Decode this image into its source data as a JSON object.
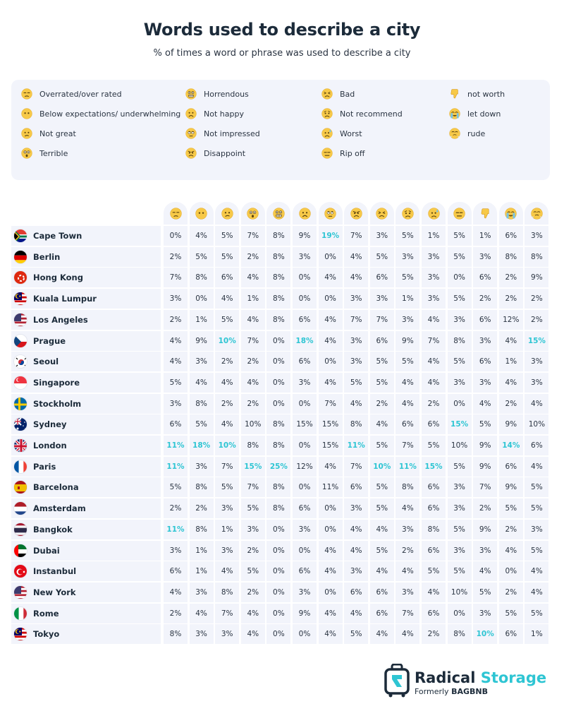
{
  "header": {
    "title": "Words used to describe a city",
    "subtitle": "% of times a word or phrase was used to describe a city"
  },
  "colors": {
    "highlight": "#2ec5d3",
    "panel": "#f2f4fb",
    "text": "#1c2b3a",
    "emoji": "#f7c948"
  },
  "legend": [
    {
      "label": "Overrated/over rated",
      "icon": "unamused-face-icon"
    },
    {
      "label": "Below expectations/ underwhelming",
      "icon": "no-mouth-face-icon"
    },
    {
      "label": "Not great",
      "icon": "confused-face-icon"
    },
    {
      "label": "Terrible",
      "icon": "astonished-face-icon"
    },
    {
      "label": "Horrendous",
      "icon": "grimacing-face-icon"
    },
    {
      "label": "Not happy",
      "icon": "frowning-face-icon"
    },
    {
      "label": "Not impressed",
      "icon": "eye-roll-face-icon"
    },
    {
      "label": "Disappoint",
      "icon": "angry-face-icon"
    },
    {
      "label": "Bad",
      "icon": "persevering-face-icon"
    },
    {
      "label": "Not recommend",
      "icon": "worried-face-icon"
    },
    {
      "label": "Worst",
      "icon": "anxious-sweat-face-icon"
    },
    {
      "label": "Rip off",
      "icon": "expressionless-face-icon"
    },
    {
      "label": "not worth",
      "icon": "thumbs-down-icon"
    },
    {
      "label": "let down",
      "icon": "crying-face-icon"
    },
    {
      "label": "rude",
      "icon": "steam-nose-face-icon"
    }
  ],
  "chart_data": {
    "type": "table",
    "title": "Words used to describe a city",
    "subtitle": "% of times a word or phrase was used to describe a city",
    "unit": "%",
    "columns": [
      "Overrated/over rated",
      "Below expectations/ underwhelming",
      "Not great",
      "Terrible",
      "Horrendous",
      "Not happy",
      "Not impressed",
      "Disappoint",
      "Bad",
      "Not recommend",
      "Worst",
      "Rip off",
      "not worth",
      "let down",
      "rude"
    ],
    "rows": [
      {
        "city": "Cape Town",
        "flag": "south-africa",
        "values": [
          "0%",
          "4%",
          "5%",
          "7%",
          "8%",
          "9%",
          "19%",
          "7%",
          "3%",
          "5%",
          "1%",
          "5%",
          "1%",
          "6%",
          "3%"
        ],
        "highlight": [
          6
        ]
      },
      {
        "city": "Berlin",
        "flag": "germany",
        "values": [
          "2%",
          "5%",
          "5%",
          "2%",
          "8%",
          "3%",
          "0%",
          "4%",
          "5%",
          "3%",
          "3%",
          "5%",
          "3%",
          "8%",
          "8%"
        ],
        "highlight": []
      },
      {
        "city": "Hong Kong",
        "flag": "hong-kong",
        "values": [
          "7%",
          "8%",
          "6%",
          "4%",
          "8%",
          "0%",
          "4%",
          "4%",
          "6%",
          "5%",
          "3%",
          "0%",
          "6%",
          "2%",
          "9%"
        ],
        "highlight": []
      },
      {
        "city": "Kuala Lumpur",
        "flag": "malaysia",
        "values": [
          "3%",
          "0%",
          "4%",
          "1%",
          "8%",
          "0%",
          "0%",
          "3%",
          "3%",
          "1%",
          "3%",
          "5%",
          "2%",
          "2%",
          "2%"
        ],
        "highlight": []
      },
      {
        "city": "Los Angeles",
        "flag": "usa",
        "values": [
          "2%",
          "1%",
          "5%",
          "4%",
          "8%",
          "6%",
          "4%",
          "7%",
          "7%",
          "3%",
          "4%",
          "3%",
          "6%",
          "12%",
          "2%"
        ],
        "highlight": []
      },
      {
        "city": "Prague",
        "flag": "czech",
        "values": [
          "4%",
          "9%",
          "10%",
          "7%",
          "0%",
          "18%",
          "4%",
          "3%",
          "6%",
          "9%",
          "7%",
          "8%",
          "3%",
          "4%",
          "15%"
        ],
        "highlight": [
          2,
          5,
          14
        ]
      },
      {
        "city": "Seoul",
        "flag": "korea",
        "values": [
          "4%",
          "3%",
          "2%",
          "2%",
          "0%",
          "6%",
          "0%",
          "3%",
          "5%",
          "5%",
          "4%",
          "5%",
          "6%",
          "1%",
          "3%"
        ],
        "highlight": []
      },
      {
        "city": "Singapore",
        "flag": "singapore",
        "values": [
          "5%",
          "4%",
          "4%",
          "4%",
          "0%",
          "3%",
          "4%",
          "5%",
          "5%",
          "4%",
          "4%",
          "3%",
          "3%",
          "4%",
          "3%"
        ],
        "highlight": []
      },
      {
        "city": "Stockholm",
        "flag": "sweden",
        "values": [
          "3%",
          "8%",
          "2%",
          "2%",
          "0%",
          "0%",
          "7%",
          "4%",
          "2%",
          "4%",
          "2%",
          "0%",
          "4%",
          "2%",
          "4%"
        ],
        "highlight": []
      },
      {
        "city": "Sydney",
        "flag": "australia",
        "values": [
          "6%",
          "5%",
          "4%",
          "10%",
          "8%",
          "15%",
          "15%",
          "8%",
          "4%",
          "6%",
          "6%",
          "15%",
          "5%",
          "9%",
          "10%"
        ],
        "highlight": [
          11
        ]
      },
      {
        "city": "London",
        "flag": "uk",
        "values": [
          "11%",
          "18%",
          "10%",
          "8%",
          "8%",
          "0%",
          "15%",
          "11%",
          "5%",
          "7%",
          "5%",
          "10%",
          "9%",
          "14%",
          "6%"
        ],
        "highlight": [
          0,
          1,
          2,
          7,
          13
        ]
      },
      {
        "city": "Paris",
        "flag": "france",
        "values": [
          "11%",
          "3%",
          "7%",
          "15%",
          "25%",
          "12%",
          "4%",
          "7%",
          "10%",
          "11%",
          "15%",
          "5%",
          "9%",
          "6%",
          "4%"
        ],
        "highlight": [
          0,
          3,
          4,
          8,
          9,
          10
        ]
      },
      {
        "city": "Barcelona",
        "flag": "spain",
        "values": [
          "5%",
          "8%",
          "5%",
          "7%",
          "8%",
          "0%",
          "11%",
          "6%",
          "5%",
          "8%",
          "6%",
          "3%",
          "7%",
          "9%",
          "5%"
        ],
        "highlight": []
      },
      {
        "city": "Amsterdam",
        "flag": "netherlands",
        "values": [
          "2%",
          "2%",
          "3%",
          "5%",
          "8%",
          "6%",
          "0%",
          "3%",
          "5%",
          "4%",
          "6%",
          "3%",
          "2%",
          "5%",
          "5%"
        ],
        "highlight": []
      },
      {
        "city": "Bangkok",
        "flag": "thailand",
        "values": [
          "11%",
          "8%",
          "1%",
          "3%",
          "0%",
          "3%",
          "0%",
          "4%",
          "4%",
          "3%",
          "8%",
          "5%",
          "9%",
          "2%",
          "3%"
        ],
        "highlight": [
          0
        ]
      },
      {
        "city": "Dubai",
        "flag": "uae",
        "values": [
          "3%",
          "1%",
          "3%",
          "2%",
          "0%",
          "0%",
          "4%",
          "4%",
          "5%",
          "2%",
          "6%",
          "3%",
          "3%",
          "4%",
          "5%"
        ],
        "highlight": []
      },
      {
        "city": "Instanbul",
        "flag": "turkey",
        "values": [
          "6%",
          "1%",
          "4%",
          "5%",
          "0%",
          "6%",
          "4%",
          "3%",
          "4%",
          "4%",
          "5%",
          "5%",
          "4%",
          "0%",
          "4%"
        ],
        "highlight": []
      },
      {
        "city": "New York",
        "flag": "usa",
        "values": [
          "4%",
          "3%",
          "8%",
          "2%",
          "0%",
          "3%",
          "0%",
          "6%",
          "6%",
          "3%",
          "4%",
          "10%",
          "5%",
          "2%",
          "4%"
        ],
        "highlight": []
      },
      {
        "city": "Rome",
        "flag": "italy",
        "values": [
          "2%",
          "4%",
          "7%",
          "4%",
          "0%",
          "9%",
          "4%",
          "4%",
          "6%",
          "7%",
          "6%",
          "0%",
          "3%",
          "5%",
          "5%"
        ],
        "highlight": []
      },
      {
        "city": "Tokyo",
        "flag": "malaysia",
        "values": [
          "8%",
          "3%",
          "3%",
          "4%",
          "0%",
          "0%",
          "4%",
          "5%",
          "4%",
          "4%",
          "2%",
          "8%",
          "10%",
          "6%",
          "1%"
        ],
        "highlight": [
          12
        ]
      }
    ]
  },
  "logo": {
    "word1": "Radical",
    "word2": "Storage",
    "sub_prefix": "Formerly",
    "sub_brand": "BAGBNB"
  }
}
